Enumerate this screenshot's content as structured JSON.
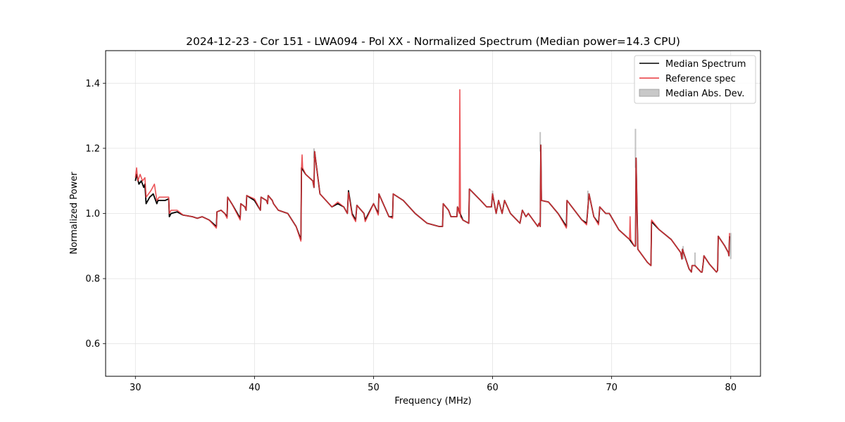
{
  "chart_data": {
    "type": "line",
    "title": "2024-12-23 - Cor 151 - LWA094 - Pol XX - Normalized Spectrum (Median power=14.3 CPU)",
    "xlabel": "Frequency (MHz)",
    "ylabel": "Normalized Power",
    "xlim": [
      27.5,
      82.5
    ],
    "ylim": [
      0.5,
      1.5
    ],
    "xticks": [
      30,
      40,
      50,
      60,
      70,
      80
    ],
    "yticks": [
      0.6,
      0.8,
      1.0,
      1.2,
      1.4
    ],
    "xtick_labels": [
      "30",
      "40",
      "50",
      "60",
      "70",
      "80"
    ],
    "ytick_labels": [
      "0.6",
      "0.8",
      "1.0",
      "1.2",
      "1.4"
    ],
    "grid": true,
    "legend_position": "top-right",
    "legend": [
      "Median Spectrum",
      "Reference spec",
      "Median Abs. Dev."
    ],
    "colors": {
      "median": "#000000",
      "reference": "#e8363b",
      "mad": "#aaaaaa"
    },
    "series": [
      {
        "name": "Median Spectrum",
        "x": [
          30.0,
          30.1,
          30.3,
          30.5,
          30.7,
          30.8,
          30.9,
          31.2,
          31.5,
          31.8,
          31.9,
          32.5,
          32.8,
          32.85,
          33.0,
          33.5,
          34.0,
          34.8,
          35.2,
          35.6,
          36.2,
          36.8,
          36.85,
          37.2,
          37.5,
          37.7,
          37.75,
          38.1,
          38.8,
          38.85,
          39.2,
          39.3,
          39.35,
          40.0,
          40.5,
          40.55,
          41.0,
          41.1,
          41.15,
          41.5,
          41.6,
          42.0,
          42.8,
          43.5,
          43.9,
          43.95,
          44.3,
          44.9,
          45.0,
          45.05,
          45.5,
          46.5,
          47.0,
          47.5,
          47.8,
          47.9,
          48.2,
          48.5,
          48.6,
          49.2,
          49.3,
          50.0,
          50.4,
          50.45,
          51.3,
          51.6,
          51.65,
          52.5,
          53.5,
          54.5,
          55.5,
          55.8,
          55.85,
          56.3,
          56.5,
          57.0,
          57.05,
          57.5,
          58.0,
          58.05,
          59.0,
          59.5,
          59.9,
          60.0,
          60.3,
          60.5,
          60.8,
          61.0,
          61.5,
          62.3,
          62.5,
          62.8,
          63.0,
          63.8,
          63.9,
          64.0,
          64.05,
          64.1,
          64.7,
          65.5,
          66.2,
          66.25,
          67.5,
          67.9,
          68.1,
          68.5,
          68.9,
          69.0,
          69.5,
          69.8,
          70.6,
          71.5,
          71.9,
          72.0,
          72.05,
          72.2,
          73.0,
          73.3,
          73.35,
          74.0,
          75.0,
          75.8,
          75.9,
          75.95,
          76.5,
          76.7,
          76.75,
          77.0,
          77.5,
          77.6,
          77.7,
          77.75,
          78.2,
          78.8,
          78.9,
          78.95,
          79.5,
          79.8,
          79.85,
          79.9
        ],
        "y": [
          1.1,
          1.12,
          1.09,
          1.1,
          1.08,
          1.09,
          1.03,
          1.05,
          1.06,
          1.03,
          1.04,
          1.04,
          1.045,
          0.99,
          1.0,
          1.005,
          0.995,
          0.99,
          0.985,
          0.99,
          0.98,
          0.96,
          1.005,
          1.01,
          1.0,
          0.99,
          1.05,
          1.03,
          0.985,
          1.03,
          1.02,
          1.01,
          1.055,
          1.04,
          1.01,
          1.05,
          1.04,
          1.03,
          1.055,
          1.04,
          1.03,
          1.01,
          1.0,
          0.96,
          0.92,
          1.14,
          1.12,
          1.1,
          1.08,
          1.19,
          1.06,
          1.02,
          1.03,
          1.02,
          1.0,
          1.07,
          1.0,
          0.98,
          1.025,
          1.0,
          0.98,
          1.03,
          1.0,
          1.06,
          0.99,
          0.99,
          1.06,
          1.04,
          1.0,
          0.97,
          0.96,
          0.96,
          1.03,
          1.01,
          0.99,
          0.99,
          1.02,
          0.98,
          0.97,
          1.075,
          1.04,
          1.02,
          1.02,
          1.06,
          1.0,
          1.04,
          1.0,
          1.04,
          1.0,
          0.97,
          1.01,
          0.99,
          1.0,
          0.96,
          0.97,
          0.96,
          1.21,
          1.04,
          1.035,
          1.0,
          0.96,
          1.04,
          0.98,
          0.97,
          1.06,
          0.99,
          0.97,
          1.02,
          1.0,
          1.0,
          0.95,
          0.92,
          0.9,
          0.9,
          1.17,
          0.89,
          0.85,
          0.84,
          0.975,
          0.95,
          0.92,
          0.88,
          0.86,
          0.89,
          0.83,
          0.82,
          0.84,
          0.84,
          0.82,
          0.82,
          0.85,
          0.87,
          0.845,
          0.82,
          0.825,
          0.93,
          0.9,
          0.88,
          0.87,
          0.93
        ]
      },
      {
        "name": "Reference spec",
        "x": [
          30.0,
          30.1,
          30.2,
          30.4,
          30.6,
          30.8,
          30.9,
          31.3,
          31.6,
          31.8,
          32.0,
          32.5,
          32.8,
          32.85,
          33.0,
          33.5,
          34.0,
          34.8,
          35.2,
          35.6,
          36.2,
          36.8,
          36.85,
          37.2,
          37.5,
          37.7,
          37.75,
          38.1,
          38.8,
          38.85,
          39.2,
          39.3,
          39.35,
          40.0,
          40.5,
          40.55,
          41.0,
          41.1,
          41.15,
          41.5,
          41.6,
          42.0,
          42.8,
          43.5,
          43.9,
          43.95,
          44.0,
          44.05,
          44.3,
          44.9,
          45.0,
          45.05,
          45.5,
          46.5,
          47.0,
          47.5,
          47.8,
          47.9,
          48.2,
          48.5,
          48.6,
          49.2,
          49.3,
          50.0,
          50.4,
          50.45,
          51.3,
          51.6,
          51.65,
          52.5,
          53.5,
          54.5,
          55.5,
          55.8,
          55.85,
          56.3,
          56.5,
          57.0,
          57.05,
          57.2,
          57.25,
          57.3,
          57.5,
          58.0,
          58.05,
          59.0,
          59.5,
          59.9,
          60.0,
          60.3,
          60.5,
          60.8,
          61.0,
          61.5,
          62.3,
          62.5,
          62.8,
          63.0,
          63.8,
          63.9,
          64.0,
          64.05,
          64.1,
          64.7,
          65.5,
          66.2,
          66.25,
          67.5,
          67.9,
          68.1,
          68.5,
          68.9,
          69.0,
          69.5,
          69.8,
          70.6,
          71.5,
          71.55,
          71.6,
          71.9,
          72.0,
          72.05,
          72.2,
          73.0,
          73.3,
          73.35,
          74.0,
          75.0,
          75.8,
          75.9,
          75.95,
          76.5,
          76.7,
          76.75,
          77.0,
          77.5,
          77.6,
          77.7,
          77.75,
          78.2,
          78.8,
          78.9,
          78.95,
          79.5,
          79.8,
          79.85,
          79.9
        ],
        "y": [
          1.11,
          1.14,
          1.1,
          1.12,
          1.1,
          1.11,
          1.05,
          1.07,
          1.09,
          1.04,
          1.05,
          1.05,
          1.05,
          1.0,
          1.01,
          1.01,
          0.995,
          0.99,
          0.985,
          0.99,
          0.98,
          0.955,
          1.005,
          1.01,
          1.0,
          0.985,
          1.05,
          1.03,
          0.98,
          1.03,
          1.02,
          1.01,
          1.055,
          1.045,
          1.01,
          1.05,
          1.04,
          1.03,
          1.055,
          1.04,
          1.03,
          1.01,
          1.0,
          0.96,
          0.915,
          1.14,
          1.18,
          1.14,
          1.12,
          1.1,
          1.08,
          1.19,
          1.06,
          1.02,
          1.035,
          1.02,
          1.0,
          1.065,
          0.995,
          0.975,
          1.025,
          1.0,
          0.975,
          1.03,
          0.995,
          1.06,
          0.99,
          0.985,
          1.06,
          1.04,
          1.0,
          0.97,
          0.96,
          0.96,
          1.03,
          1.01,
          0.99,
          0.99,
          1.02,
          1.0,
          1.38,
          0.99,
          0.98,
          0.97,
          1.075,
          1.04,
          1.02,
          1.02,
          1.06,
          1.0,
          1.04,
          1.0,
          1.04,
          1.0,
          0.97,
          1.01,
          0.99,
          1.0,
          0.96,
          0.97,
          0.96,
          1.21,
          1.04,
          1.035,
          1.0,
          0.955,
          1.04,
          0.98,
          0.965,
          1.06,
          0.99,
          0.965,
          1.02,
          1.0,
          1.0,
          0.95,
          0.92,
          0.99,
          0.92,
          0.9,
          0.9,
          1.17,
          0.89,
          0.85,
          0.84,
          0.98,
          0.95,
          0.92,
          0.88,
          0.86,
          0.89,
          0.83,
          0.82,
          0.84,
          0.84,
          0.82,
          0.82,
          0.85,
          0.87,
          0.845,
          0.82,
          0.825,
          0.93,
          0.9,
          0.88,
          0.87,
          0.94
        ]
      },
      {
        "name": "Median Abs. Dev.",
        "x": [
          45.0,
          60.0,
          64.0,
          68.0,
          72.0,
          76.0,
          77.0,
          80.0
        ],
        "y_low": [
          1.17,
          1.04,
          1.19,
          1.04,
          1.14,
          0.86,
          0.84,
          0.86
        ],
        "y_high": [
          1.2,
          1.07,
          1.25,
          1.07,
          1.26,
          0.9,
          0.88,
          0.94
        ]
      }
    ]
  }
}
